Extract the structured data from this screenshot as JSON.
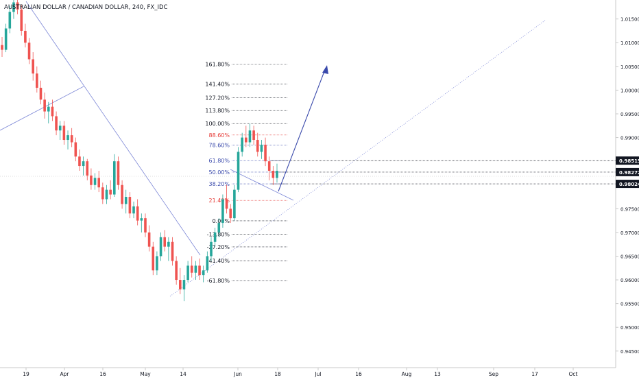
{
  "header": {
    "title": "AUSTRALIAN DOLLAR / CANADIAN DOLLAR, 240, FX_IDC"
  },
  "chart_data": {
    "type": "candlestick",
    "symbol": "AUDCAD",
    "interval": "240",
    "source": "FX_IDC",
    "x_ticks": [
      "19",
      "Apr",
      "16",
      "May",
      "14",
      "Jun",
      "18",
      "Jul",
      "16",
      "Aug",
      "13",
      "Sep",
      "17",
      "Oct"
    ],
    "y_ticks": [
      "1.01500",
      "1.01000",
      "1.00500",
      "1.00000",
      "0.99500",
      "0.99000",
      "0.98500",
      "0.98000",
      "0.97500",
      "0.97000",
      "0.96500",
      "0.96000",
      "0.95500",
      "0.95000",
      "0.94500"
    ],
    "ylim": [
      0.9415,
      1.019
    ],
    "price_labels": [
      {
        "text": "0.98515",
        "value": 0.98515
      },
      {
        "text": "0.98272",
        "value": 0.98272
      },
      {
        "text": "0.98024",
        "value": 0.98024
      }
    ],
    "fib_levels": [
      {
        "label": "161.80%",
        "value": 1.0055,
        "color": "#131722"
      },
      {
        "label": "141.40%",
        "value": 1.0013,
        "color": "#131722"
      },
      {
        "label": "127.20%",
        "value": 0.9984,
        "color": "#131722"
      },
      {
        "label": "113.80%",
        "value": 0.9957,
        "color": "#131722"
      },
      {
        "label": "100.00%",
        "value": 0.99295,
        "color": "#131722"
      },
      {
        "label": "88.60%",
        "value": 0.99055,
        "color": "#e53935"
      },
      {
        "label": "78.60%",
        "value": 0.98845,
        "color": "#3949ab"
      },
      {
        "label": "61.80%",
        "value": 0.98515,
        "color": "#3949ab"
      },
      {
        "label": "50.00%",
        "value": 0.98272,
        "color": "#3949ab"
      },
      {
        "label": "38.20%",
        "value": 0.98024,
        "color": "#3949ab"
      },
      {
        "label": "21.40%",
        "value": 0.97675,
        "color": "#e53935"
      },
      {
        "label": "0.00%",
        "value": 0.97245,
        "color": "#131722"
      },
      {
        "label": "-13.80%",
        "value": 0.96965,
        "color": "#131722"
      },
      {
        "label": "-27.20%",
        "value": 0.96695,
        "color": "#131722"
      },
      {
        "label": "-41.40%",
        "value": 0.96405,
        "color": "#131722"
      },
      {
        "label": "-61.80%",
        "value": 0.95985,
        "color": "#131722"
      }
    ],
    "candles": [
      [
        1.0095,
        1.0112,
        1.007,
        1.0085
      ],
      [
        1.0085,
        1.014,
        1.008,
        1.013
      ],
      [
        1.013,
        1.0178,
        1.012,
        1.0165
      ],
      [
        1.0165,
        1.02,
        1.015,
        1.0185
      ],
      [
        1.0185,
        1.0195,
        1.016,
        1.017
      ],
      [
        1.017,
        1.018,
        1.0115,
        1.0125
      ],
      [
        1.0125,
        1.014,
        1.009,
        1.01
      ],
      [
        1.01,
        1.011,
        1.0055,
        1.0065
      ],
      [
        1.0065,
        1.008,
        1.002,
        1.0035
      ],
      [
        1.0035,
        1.005,
        0.9995,
        1.0005
      ],
      [
        1.0005,
        1.002,
        0.997,
        0.998
      ],
      [
        0.998,
        0.9995,
        0.994,
        0.9955
      ],
      [
        0.9955,
        0.9975,
        0.993,
        0.9965
      ],
      [
        0.9965,
        0.998,
        0.9935,
        0.9945
      ],
      [
        0.9945,
        0.9955,
        0.9905,
        0.9915
      ],
      [
        0.9915,
        0.9935,
        0.9895,
        0.9925
      ],
      [
        0.9925,
        0.9935,
        0.9885,
        0.9895
      ],
      [
        0.9895,
        0.9915,
        0.9875,
        0.9905
      ],
      [
        0.9905,
        0.992,
        0.988,
        0.989
      ],
      [
        0.989,
        0.99,
        0.985,
        0.986
      ],
      [
        0.986,
        0.9875,
        0.983,
        0.984
      ],
      [
        0.984,
        0.986,
        0.982,
        0.985
      ],
      [
        0.985,
        0.9855,
        0.981,
        0.982
      ],
      [
        0.982,
        0.9835,
        0.979,
        0.98
      ],
      [
        0.98,
        0.9825,
        0.979,
        0.9815
      ],
      [
        0.9815,
        0.983,
        0.9785,
        0.9795
      ],
      [
        0.9795,
        0.9805,
        0.976,
        0.977
      ],
      [
        0.977,
        0.98,
        0.976,
        0.979
      ],
      [
        0.979,
        0.981,
        0.977,
        0.978
      ],
      [
        0.978,
        0.9865,
        0.9775,
        0.985
      ],
      [
        0.985,
        0.986,
        0.979,
        0.98
      ],
      [
        0.98,
        0.981,
        0.975,
        0.976
      ],
      [
        0.976,
        0.979,
        0.974,
        0.9775
      ],
      [
        0.9775,
        0.9785,
        0.973,
        0.974
      ],
      [
        0.974,
        0.9765,
        0.973,
        0.9755
      ],
      [
        0.9755,
        0.977,
        0.9715,
        0.9725
      ],
      [
        0.9725,
        0.974,
        0.97,
        0.973
      ],
      [
        0.973,
        0.974,
        0.969,
        0.97
      ],
      [
        0.97,
        0.9715,
        0.966,
        0.967
      ],
      [
        0.967,
        0.968,
        0.961,
        0.962
      ],
      [
        0.962,
        0.966,
        0.961,
        0.965
      ],
      [
        0.965,
        0.97,
        0.964,
        0.969
      ],
      [
        0.969,
        0.9705,
        0.966,
        0.967
      ],
      [
        0.967,
        0.969,
        0.964,
        0.968
      ],
      [
        0.968,
        0.969,
        0.963,
        0.964
      ],
      [
        0.964,
        0.965,
        0.959,
        0.96
      ],
      [
        0.96,
        0.9625,
        0.957,
        0.958
      ],
      [
        0.958,
        0.961,
        0.9555,
        0.96
      ],
      [
        0.96,
        0.964,
        0.9595,
        0.963
      ],
      [
        0.963,
        0.965,
        0.9605,
        0.9615
      ],
      [
        0.9615,
        0.964,
        0.96,
        0.963
      ],
      [
        0.963,
        0.9645,
        0.96,
        0.961
      ],
      [
        0.961,
        0.963,
        0.9595,
        0.962
      ],
      [
        0.962,
        0.966,
        0.9615,
        0.965
      ],
      [
        0.965,
        0.969,
        0.964,
        0.968
      ],
      [
        0.968,
        0.971,
        0.967,
        0.97
      ],
      [
        0.97,
        0.973,
        0.969,
        0.972
      ],
      [
        0.972,
        0.978,
        0.971,
        0.977
      ],
      [
        0.977,
        0.98,
        0.974,
        0.975
      ],
      [
        0.975,
        0.976,
        0.972,
        0.973
      ],
      [
        0.973,
        0.98,
        0.9725,
        0.979
      ],
      [
        0.979,
        0.988,
        0.9785,
        0.987
      ],
      [
        0.987,
        0.991,
        0.986,
        0.99
      ],
      [
        0.99,
        0.9925,
        0.988,
        0.989
      ],
      [
        0.989,
        0.993,
        0.988,
        0.9915
      ],
      [
        0.9915,
        0.9925,
        0.9885,
        0.9895
      ],
      [
        0.9895,
        0.991,
        0.986,
        0.987
      ],
      [
        0.987,
        0.9895,
        0.9855,
        0.9885
      ],
      [
        0.9885,
        0.99,
        0.984,
        0.985
      ],
      [
        0.985,
        0.986,
        0.981,
        0.983
      ],
      [
        0.983,
        0.984,
        0.98,
        0.9815
      ],
      [
        0.9815,
        0.9845,
        0.9805,
        0.983
      ]
    ]
  }
}
